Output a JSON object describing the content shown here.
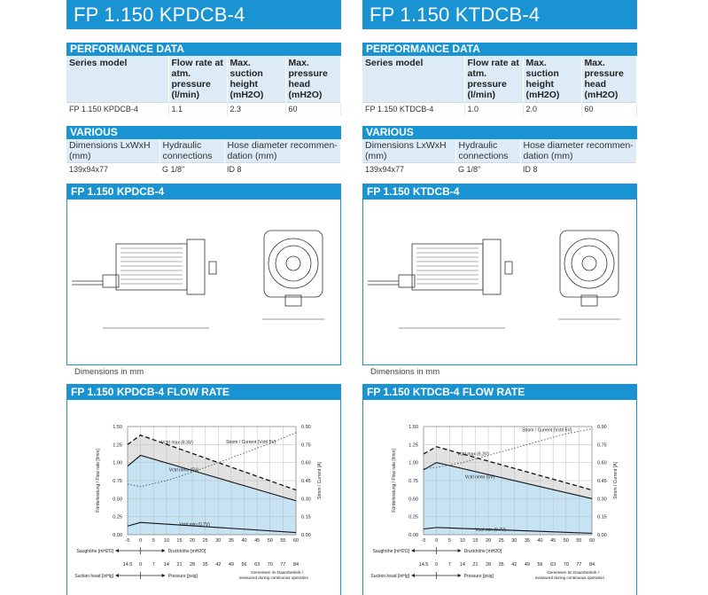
{
  "products": [
    {
      "title": "FP 1.150 KPDCB-4",
      "performance_heading": "PERFORMANCE DATA",
      "perf_headers": [
        "Series model",
        "Flow rate at atm. pressure (l/min)",
        "Max. suction height (mH2O)",
        "Max. pressure head (mH2O)"
      ],
      "perf_row": [
        "FP 1.150 KPDCB-4",
        "1.1",
        "2.3",
        "60"
      ],
      "various_heading": "VARIOUS",
      "various_headers": [
        "Dimensions LxWxH (mm)",
        "Hydraulic connections",
        "Hose diameter recommen-dation (mm)"
      ],
      "various_row": [
        "139x94x77",
        "G 1/8\"",
        "ID 8"
      ],
      "drawing_heading": "FP 1.150 KPDCB-4",
      "drawing_note": "Dimensions in mm",
      "flow_heading": "FP 1.150 KPDCB-4 FLOW RATE",
      "chart_data": {
        "type": "line",
        "x_label": "Druckhöhe [mH2O]",
        "x_label_neg": "Saughöhe [mH2O]",
        "x2_label": "Pressure [psig]",
        "x2_label_neg": "Suction head [inHg]",
        "y_label": "Förderleistung / Flow rate [l/min]",
        "y2_label": "Strom / Current [A]",
        "note": "Gemessen im Dauerbetrieb / measured during continuous operation",
        "x_ticks": [
          "-5",
          "0",
          "5",
          "10",
          "15",
          "20",
          "25",
          "30",
          "35",
          "40",
          "45",
          "50",
          "55",
          "60"
        ],
        "x2_ticks": [
          "14.5",
          "0",
          "7",
          "14",
          "21",
          "28",
          "35",
          "42",
          "49",
          "56",
          "63",
          "70",
          "77",
          "84"
        ],
        "y_ticks": [
          "0.00",
          "0.25",
          "0.50",
          "0.75",
          "1.00",
          "1.25",
          "1.50"
        ],
        "y2_ticks": [
          "0.00",
          "0.15",
          "0.30",
          "0.45",
          "0.60",
          "0.75",
          "0.90"
        ],
        "xlim": [
          -5,
          60
        ],
        "ylim": [
          0,
          1.5
        ],
        "y2lim": [
          0,
          0.9
        ],
        "series": [
          {
            "name": "Vctrl max (6.3V)",
            "style": "dashed",
            "x": [
              -5,
              0,
              60
            ],
            "y": [
              1.25,
              1.38,
              0.62
            ]
          },
          {
            "name": "Vctrl nenn (5V)",
            "style": "solid",
            "x": [
              -5,
              0,
              60
            ],
            "y": [
              0.95,
              1.1,
              0.47
            ]
          },
          {
            "name": "Vctrl min (0.7V)",
            "style": "solid",
            "x": [
              -5,
              0,
              60
            ],
            "y": [
              0.12,
              0.17,
              0.03
            ]
          },
          {
            "name": "Strom / Current (Vctrl 5V)",
            "style": "dotted",
            "axis": "y2",
            "x": [
              -5,
              0,
              10,
              20,
              30,
              40,
              50,
              60
            ],
            "y": [
              0.42,
              0.4,
              0.45,
              0.52,
              0.6,
              0.68,
              0.76,
              0.85
            ]
          }
        ]
      }
    },
    {
      "title": "FP 1.150 KTDCB-4",
      "performance_heading": "PERFORMANCE DATA",
      "perf_headers": [
        "Series model",
        "Flow rate at atm. pressure (l/min)",
        "Max. suction height (mH2O)",
        "Max. pressure head (mH2O)"
      ],
      "perf_row": [
        "FP 1.150 KTDCB-4",
        "1.0",
        "2.0",
        "60"
      ],
      "various_heading": "VARIOUS",
      "various_headers": [
        "Dimensions LxWxH (mm)",
        "Hydraulic connections",
        "Hose diameter recommen-dation (mm)"
      ],
      "various_row": [
        "139x94x77",
        "G 1/8\"",
        "ID 8"
      ],
      "drawing_heading": "FP 1.150 KTDCB-4",
      "drawing_note": "Dimensions in mm",
      "flow_heading": "FP 1.150 KTDCB-4 FLOW RATE",
      "chart_data": {
        "type": "line",
        "x_label": "Druckhöhe [mH2O]",
        "x_label_neg": "Saughöhe [mH2O]",
        "x2_label": "Pressure [psig]",
        "x2_label_neg": "Suction head [inHg]",
        "y_label": "Förderleistung / Flow rate [l/min]",
        "y2_label": "Strom / Current [A]",
        "note": "Gemessen im Dauerbetrieb / measured during continuous operation",
        "x_ticks": [
          "-5",
          "0",
          "5",
          "10",
          "15",
          "20",
          "25",
          "30",
          "35",
          "40",
          "45",
          "50",
          "55",
          "60"
        ],
        "x2_ticks": [
          "14.5",
          "0",
          "7",
          "14",
          "21",
          "28",
          "35",
          "42",
          "49",
          "56",
          "63",
          "70",
          "77",
          "84"
        ],
        "y_ticks": [
          "0.00",
          "0.25",
          "0.50",
          "0.75",
          "1.00",
          "1.25",
          "1.50"
        ],
        "y2_ticks": [
          "0.00",
          "0.15",
          "0.30",
          "0.45",
          "0.60",
          "0.75",
          "0.90"
        ],
        "xlim": [
          -5,
          60
        ],
        "ylim": [
          0,
          1.5
        ],
        "y2lim": [
          0,
          0.9
        ],
        "series": [
          {
            "name": "Vctrl max (6.3V)",
            "style": "dashed",
            "x": [
              -5,
              0,
              60
            ],
            "y": [
              1.12,
              1.22,
              0.62
            ]
          },
          {
            "name": "Vctrl nenn (5V)",
            "style": "solid",
            "x": [
              -5,
              0,
              60
            ],
            "y": [
              0.9,
              1.0,
              0.5
            ]
          },
          {
            "name": "Vctrl min (0.7V)",
            "style": "solid",
            "x": [
              -5,
              0,
              60
            ],
            "y": [
              0.08,
              0.1,
              0.02
            ]
          },
          {
            "name": "Strom / Current (Vctrl 5V)",
            "style": "dotted",
            "axis": "y2",
            "x": [
              -5,
              0,
              10,
              20,
              30,
              40,
              50,
              60
            ],
            "y": [
              0.55,
              0.56,
              0.6,
              0.66,
              0.72,
              0.78,
              0.84,
              0.88
            ]
          }
        ]
      }
    }
  ]
}
